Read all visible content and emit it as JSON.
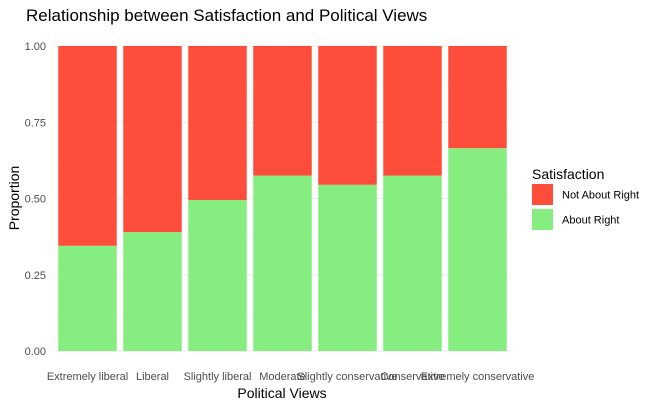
{
  "chart_data": {
    "type": "bar",
    "stacked": true,
    "title": "Relationship between Satisfaction and Political Views",
    "xlabel": "Political Views",
    "ylabel": "Proportion",
    "ylim": [
      0,
      1
    ],
    "yticks": [
      "0.00",
      "0.25",
      "0.50",
      "0.75",
      "1.00"
    ],
    "grid": true,
    "legend_position": "right",
    "legend_title": "Satisfaction",
    "categories": [
      "Extremely liberal",
      "Liberal",
      "Slightly liberal",
      "Moderate",
      "Slightly conservative",
      "Conservative",
      "Extremely conservative"
    ],
    "series": [
      {
        "name": "About Right",
        "color": "#86ee80",
        "values": [
          0.345,
          0.39,
          0.495,
          0.575,
          0.545,
          0.575,
          0.665
        ]
      },
      {
        "name": "Not About Right",
        "color": "#ff4d3b",
        "values": [
          0.655,
          0.61,
          0.505,
          0.425,
          0.455,
          0.425,
          0.335
        ]
      }
    ],
    "legend_order": [
      "Not About Right",
      "About Right"
    ]
  }
}
